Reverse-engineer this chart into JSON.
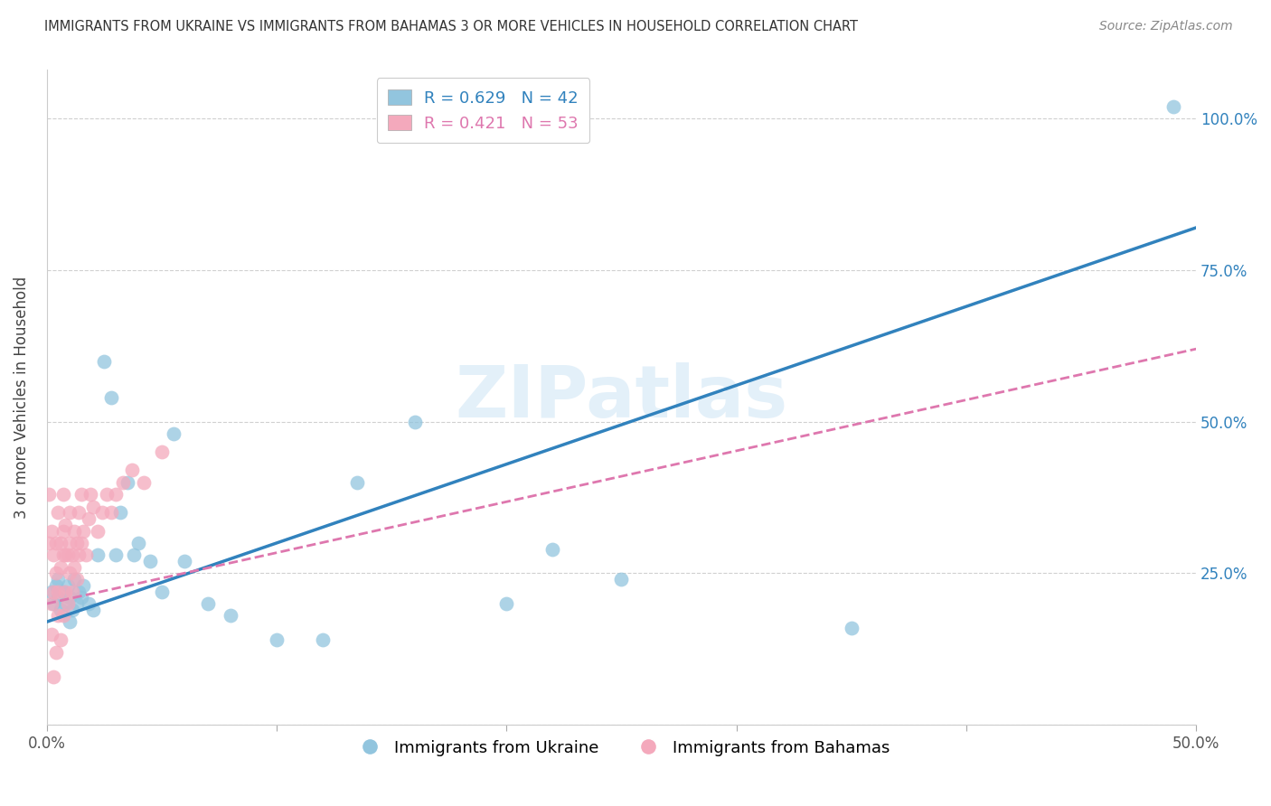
{
  "title": "IMMIGRANTS FROM UKRAINE VS IMMIGRANTS FROM BAHAMAS 3 OR MORE VEHICLES IN HOUSEHOLD CORRELATION CHART",
  "source": "Source: ZipAtlas.com",
  "ylabel": "3 or more Vehicles in Household",
  "xlim": [
    0.0,
    0.5
  ],
  "ylim": [
    0.0,
    1.08
  ],
  "yticks_right": [
    0.0,
    0.25,
    0.5,
    0.75,
    1.0
  ],
  "ytick_labels_right": [
    "",
    "25.0%",
    "50.0%",
    "75.0%",
    "100.0%"
  ],
  "ukraine_color": "#92c5de",
  "bahamas_color": "#f4a9bc",
  "ukraine_line_color": "#3182bd",
  "bahamas_line_color": "#de77ae",
  "ukraine_R": 0.629,
  "ukraine_N": 42,
  "bahamas_R": 0.421,
  "bahamas_N": 53,
  "watermark": "ZIPatlas",
  "ukraine_x": [
    0.002,
    0.003,
    0.004,
    0.005,
    0.005,
    0.006,
    0.007,
    0.008,
    0.009,
    0.01,
    0.01,
    0.011,
    0.012,
    0.013,
    0.014,
    0.015,
    0.016,
    0.018,
    0.02,
    0.022,
    0.025,
    0.028,
    0.03,
    0.032,
    0.035,
    0.038,
    0.04,
    0.045,
    0.05,
    0.055,
    0.06,
    0.07,
    0.08,
    0.1,
    0.12,
    0.135,
    0.16,
    0.2,
    0.22,
    0.25,
    0.35,
    0.49
  ],
  "ukraine_y": [
    0.22,
    0.2,
    0.23,
    0.21,
    0.24,
    0.19,
    0.22,
    0.2,
    0.23,
    0.21,
    0.17,
    0.19,
    0.24,
    0.2,
    0.22,
    0.21,
    0.23,
    0.2,
    0.19,
    0.28,
    0.6,
    0.54,
    0.28,
    0.35,
    0.4,
    0.28,
    0.3,
    0.27,
    0.22,
    0.48,
    0.27,
    0.2,
    0.18,
    0.14,
    0.14,
    0.4,
    0.5,
    0.2,
    0.29,
    0.24,
    0.16,
    1.02
  ],
  "bahamas_x": [
    0.001,
    0.001,
    0.002,
    0.002,
    0.002,
    0.003,
    0.003,
    0.003,
    0.004,
    0.004,
    0.004,
    0.005,
    0.005,
    0.005,
    0.006,
    0.006,
    0.006,
    0.007,
    0.007,
    0.007,
    0.007,
    0.008,
    0.008,
    0.008,
    0.009,
    0.009,
    0.01,
    0.01,
    0.01,
    0.011,
    0.011,
    0.012,
    0.012,
    0.013,
    0.013,
    0.014,
    0.014,
    0.015,
    0.015,
    0.016,
    0.017,
    0.018,
    0.019,
    0.02,
    0.022,
    0.024,
    0.026,
    0.028,
    0.03,
    0.033,
    0.037,
    0.042,
    0.05
  ],
  "bahamas_y": [
    0.38,
    0.3,
    0.15,
    0.32,
    0.2,
    0.08,
    0.22,
    0.28,
    0.12,
    0.25,
    0.3,
    0.18,
    0.22,
    0.35,
    0.14,
    0.26,
    0.3,
    0.18,
    0.28,
    0.32,
    0.38,
    0.22,
    0.28,
    0.33,
    0.2,
    0.28,
    0.25,
    0.3,
    0.35,
    0.22,
    0.28,
    0.26,
    0.32,
    0.24,
    0.3,
    0.28,
    0.35,
    0.3,
    0.38,
    0.32,
    0.28,
    0.34,
    0.38,
    0.36,
    0.32,
    0.35,
    0.38,
    0.35,
    0.38,
    0.4,
    0.42,
    0.4,
    0.45
  ],
  "background_color": "#ffffff",
  "grid_color": "#d0d0d0"
}
